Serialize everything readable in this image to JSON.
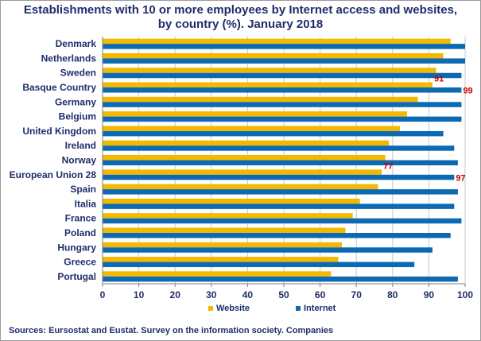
{
  "title_line1": "Establishments with 10 or more employees by Internet access and websites,",
  "title_line2": "by country (%). January 2018",
  "source": "Sources: Eursostat and Eustat. Survey on the information society. Companies",
  "chart_data": {
    "type": "bar",
    "orientation": "horizontal",
    "categories": [
      "Denmark",
      "Netherlands",
      "Sweden",
      "Basque Country",
      "Germany",
      "Belgium",
      "United Kingdom",
      "Ireland",
      "Norway",
      "European Union 28",
      "Spain",
      "Italia",
      "France",
      "Poland",
      "Hungary",
      "Greece",
      "Portugal"
    ],
    "series": [
      {
        "name": "Website",
        "color": "#f5b800",
        "values": [
          96,
          94,
          92,
          91,
          87,
          84,
          82,
          79,
          78,
          77,
          76,
          71,
          69,
          67,
          66,
          65,
          63
        ]
      },
      {
        "name": "Internet",
        "color": "#0b6ab3",
        "values": [
          100,
          100,
          99,
          99,
          99,
          99,
          94,
          97,
          98,
          97,
          98,
          97,
          99,
          96,
          91,
          86,
          98
        ]
      }
    ],
    "data_labels": [
      {
        "category": "Basque Country",
        "series": "Website",
        "text": "91"
      },
      {
        "category": "Basque Country",
        "series": "Internet",
        "text": "99"
      },
      {
        "category": "European Union 28",
        "series": "Website",
        "text": "77"
      },
      {
        "category": "European Union 28",
        "series": "Internet",
        "text": "97"
      }
    ],
    "label_color": "#cc0000",
    "xlim": [
      0,
      100
    ],
    "xticks": [
      0,
      10,
      20,
      30,
      40,
      50,
      60,
      70,
      80,
      90,
      100
    ],
    "grid": true,
    "legend_position": "bottom"
  }
}
